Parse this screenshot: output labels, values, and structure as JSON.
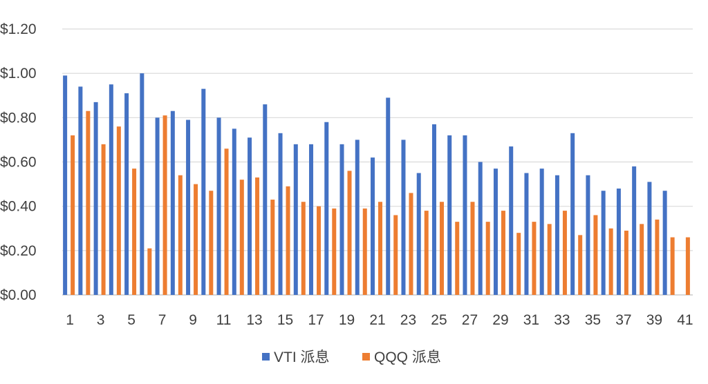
{
  "chart_data": {
    "type": "bar",
    "categories": [
      "1",
      "2",
      "3",
      "4",
      "5",
      "6",
      "7",
      "8",
      "9",
      "10",
      "11",
      "12",
      "13",
      "14",
      "15",
      "16",
      "17",
      "18",
      "19",
      "20",
      "21",
      "22",
      "23",
      "24",
      "25",
      "26",
      "27",
      "28",
      "29",
      "30",
      "31",
      "32",
      "33",
      "34",
      "35",
      "36",
      "37",
      "38",
      "39",
      "40",
      "41"
    ],
    "x_tick_labels": [
      "1",
      "3",
      "5",
      "7",
      "9",
      "11",
      "13",
      "15",
      "17",
      "19",
      "21",
      "23",
      "25",
      "27",
      "29",
      "31",
      "33",
      "35",
      "37",
      "39",
      "41"
    ],
    "y_tick_labels": [
      "$0.00",
      "$0.20",
      "$0.40",
      "$0.60",
      "$0.80",
      "$1.00",
      "$1.20"
    ],
    "ylim": [
      0,
      1.2
    ],
    "grid": true,
    "legend_position": "bottom",
    "series": [
      {
        "name": "VTI 派息",
        "color": "#4472C4",
        "values": [
          0.99,
          0.94,
          0.87,
          0.95,
          0.91,
          1.0,
          0.8,
          0.83,
          0.79,
          0.93,
          0.8,
          0.75,
          0.71,
          0.86,
          0.73,
          0.68,
          0.68,
          0.78,
          0.68,
          0.7,
          0.62,
          0.89,
          0.7,
          0.55,
          0.77,
          0.72,
          0.72,
          0.6,
          0.57,
          0.67,
          0.55,
          0.57,
          0.54,
          0.73,
          0.54,
          0.47,
          0.48,
          0.58,
          0.51,
          0.47,
          null
        ]
      },
      {
        "name": "QQQ 派息",
        "color": "#ED7D31",
        "values": [
          0.72,
          0.83,
          0.68,
          0.76,
          0.57,
          0.21,
          0.81,
          0.54,
          0.5,
          0.47,
          0.66,
          0.52,
          0.53,
          0.43,
          0.49,
          0.42,
          0.4,
          0.39,
          0.56,
          0.39,
          0.42,
          0.36,
          0.46,
          0.38,
          0.42,
          0.33,
          0.42,
          0.33,
          0.38,
          0.28,
          0.33,
          0.32,
          0.38,
          0.27,
          0.36,
          0.3,
          0.29,
          0.32,
          0.34,
          0.26,
          0.26
        ]
      }
    ]
  }
}
